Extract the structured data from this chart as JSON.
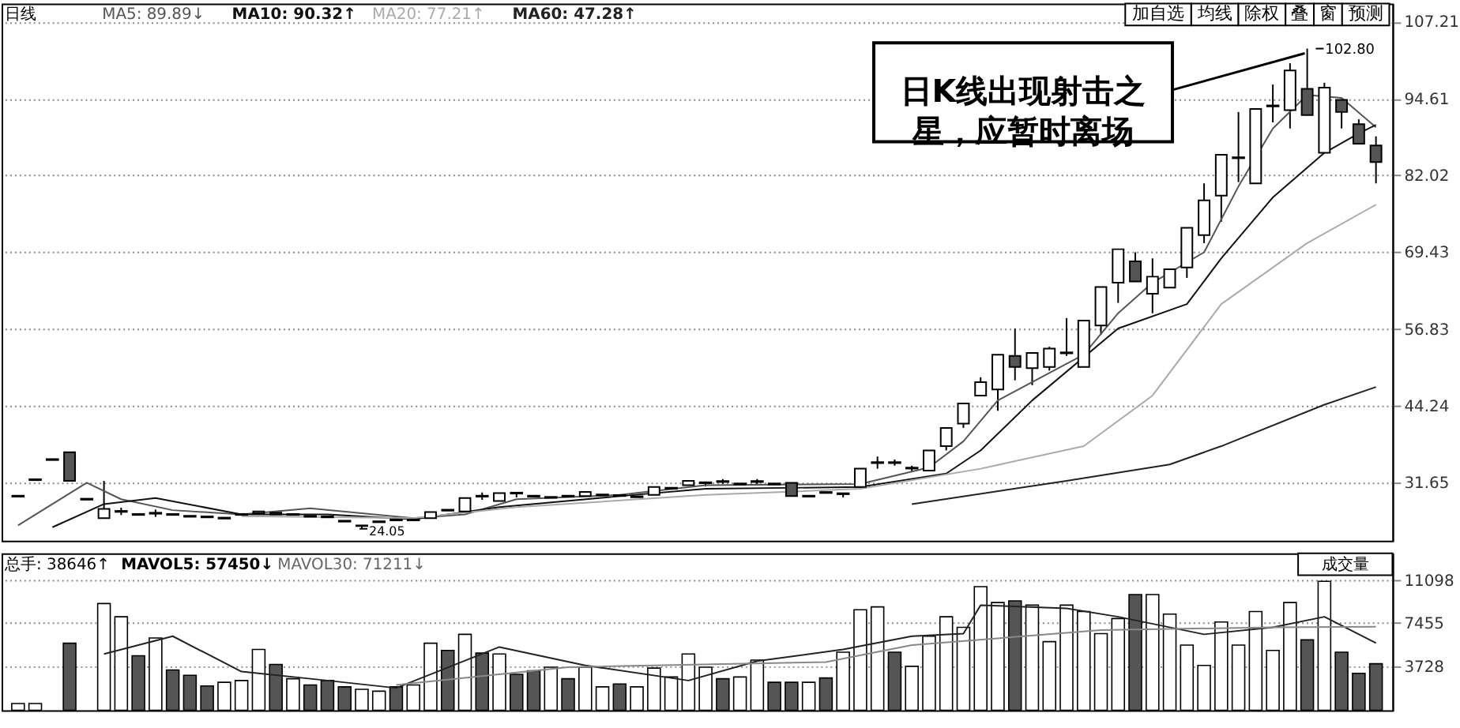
{
  "chart_data": [
    {
      "type": "candlestick",
      "title": "日线",
      "categories": [
        null,
        null,
        null,
        null,
        null,
        null,
        null,
        null,
        null,
        null,
        null,
        null,
        null,
        null,
        null,
        null,
        null,
        null,
        null,
        null,
        null,
        null,
        null,
        null,
        null,
        null,
        null,
        null,
        null,
        null,
        null,
        null,
        null,
        null,
        null,
        null,
        null,
        null,
        null,
        null,
        null,
        null,
        null,
        null,
        null,
        null,
        null,
        null,
        null,
        null,
        null,
        null,
        null,
        null,
        null,
        null,
        null,
        null,
        null,
        null,
        null,
        null,
        null,
        null,
        null,
        null,
        null,
        null,
        null,
        null,
        null,
        null,
        null,
        null,
        null,
        null,
        null,
        null,
        null,
        null
      ],
      "ohlc": [
        [
          29.4,
          29.4,
          29.4,
          29.4
        ],
        [
          32.1,
          32.1,
          32.1,
          32.1
        ],
        [
          35.4,
          35.4,
          35.4,
          35.4
        ],
        [
          36.6,
          36.6,
          31.9,
          31.9
        ],
        [
          28.9,
          28.9,
          28.9,
          28.9
        ],
        [
          25.8,
          31.9,
          25.8,
          27.3
        ],
        [
          26.9,
          27.5,
          26.3,
          26.9
        ],
        [
          26.4,
          26.4,
          26.4,
          26.4
        ],
        [
          26.6,
          27.2,
          26.0,
          26.6
        ],
        [
          26.4,
          26.4,
          26.4,
          26.4
        ],
        [
          26.1,
          26.1,
          26.1,
          26.1
        ],
        [
          26.0,
          26.0,
          26.0,
          26.0
        ],
        [
          25.8,
          25.8,
          25.8,
          25.8
        ],
        [
          26.4,
          26.4,
          26.4,
          26.4
        ],
        [
          26.6,
          26.9,
          26.6,
          26.9
        ],
        [
          26.7,
          26.7,
          26.4,
          26.4
        ],
        [
          26.4,
          26.4,
          26.4,
          26.4
        ],
        [
          26.1,
          26.1,
          26.1,
          26.1
        ],
        [
          26.0,
          26.0,
          26.0,
          26.0
        ],
        [
          25.3,
          25.3,
          25.3,
          25.3
        ],
        [
          24.6,
          24.6,
          24.05,
          24.5
        ],
        [
          25.2,
          25.2,
          25.2,
          25.2
        ],
        [
          25.5,
          25.5,
          25.5,
          25.5
        ],
        [
          25.5,
          25.5,
          25.5,
          25.5
        ],
        [
          25.8,
          26.8,
          25.8,
          26.8
        ],
        [
          27.1,
          27.1,
          27.1,
          27.1
        ],
        [
          26.9,
          29.1,
          26.9,
          29.1
        ],
        [
          29.4,
          30.0,
          28.8,
          29.4
        ],
        [
          28.6,
          29.9,
          28.6,
          29.9
        ],
        [
          29.9,
          29.9,
          29.2,
          29.9
        ],
        [
          29.4,
          29.4,
          29.4,
          29.4
        ],
        [
          29.2,
          29.2,
          29.2,
          29.2
        ],
        [
          29.4,
          29.4,
          29.4,
          29.4
        ],
        [
          29.4,
          30.1,
          29.4,
          30.1
        ],
        [
          29.6,
          29.6,
          29.6,
          29.6
        ],
        [
          29.5,
          29.5,
          29.5,
          29.5
        ],
        [
          29.3,
          29.3,
          29.3,
          29.3
        ],
        [
          29.6,
          30.9,
          29.6,
          30.9
        ],
        [
          30.7,
          30.7,
          30.7,
          30.7
        ],
        [
          31.2,
          31.9,
          31.2,
          31.9
        ],
        [
          31.6,
          31.6,
          31.0,
          31.6
        ],
        [
          31.8,
          32.2,
          31.4,
          31.8
        ],
        [
          31.4,
          31.4,
          31.4,
          31.4
        ],
        [
          31.8,
          32.2,
          31.4,
          31.8
        ],
        [
          31.4,
          31.4,
          31.4,
          31.4
        ],
        [
          31.6,
          31.6,
          29.4,
          29.4
        ],
        [
          29.4,
          29.4,
          29.4,
          29.4
        ],
        [
          30.0,
          30.0,
          30.0,
          30.0
        ],
        [
          29.8,
          29.8,
          29.2,
          29.8
        ],
        [
          30.9,
          33.9,
          30.9,
          33.9
        ],
        [
          34.9,
          35.9,
          33.9,
          34.9
        ],
        [
          34.9,
          35.4,
          34.4,
          34.9
        ],
        [
          34.0,
          34.4,
          33.4,
          34.0
        ],
        [
          33.6,
          36.9,
          33.6,
          36.9
        ],
        [
          37.6,
          40.6,
          36.9,
          40.6
        ],
        [
          41.3,
          44.6,
          40.6,
          44.6
        ],
        [
          45.9,
          48.9,
          45.9,
          48.1
        ],
        [
          46.9,
          52.6,
          43.4,
          52.6
        ],
        [
          52.4,
          56.9,
          48.4,
          50.6
        ],
        [
          50.4,
          52.9,
          47.6,
          52.9
        ],
        [
          50.6,
          53.9,
          50.0,
          53.6
        ],
        [
          52.9,
          58.6,
          52.4,
          52.9
        ],
        [
          50.6,
          58.2,
          50.6,
          58.2
        ],
        [
          57.4,
          63.7,
          55.9,
          63.7
        ],
        [
          64.4,
          69.9,
          61.1,
          69.9
        ],
        [
          67.9,
          69.4,
          64.6,
          64.6
        ],
        [
          62.6,
          68.4,
          59.4,
          65.4
        ],
        [
          63.6,
          66.6,
          63.6,
          66.6
        ],
        [
          66.9,
          73.4,
          65.2,
          73.4
        ],
        [
          72.2,
          80.7,
          70.9,
          77.9
        ],
        [
          78.7,
          85.4,
          74.4,
          85.4
        ],
        [
          84.9,
          92.4,
          80.9,
          84.9
        ],
        [
          80.7,
          92.9,
          80.7,
          92.9
        ],
        [
          93.4,
          96.9,
          90.7,
          93.4
        ],
        [
          92.7,
          100.4,
          89.7,
          99.2
        ],
        [
          96.2,
          102.8,
          91.9,
          91.9
        ],
        [
          85.7,
          97.2,
          85.7,
          96.4
        ],
        [
          94.4,
          94.4,
          89.7,
          92.4
        ],
        [
          90.4,
          91.2,
          87.2,
          87.2
        ],
        [
          86.9,
          88.4,
          80.7,
          84.2
        ]
      ],
      "series": [
        {
          "type": "line",
          "color": "#555555",
          "values": [
            24.6,
            null,
            null,
            null,
            31.6,
            null,
            28.9,
            null,
            null,
            27.1,
            null,
            null,
            null,
            26.4,
            null,
            null,
            null,
            27.4,
            null,
            null,
            null,
            null,
            null,
            25.8,
            null,
            null,
            26.4,
            null,
            null,
            28.9,
            null,
            null,
            null,
            null,
            null,
            29.6,
            null,
            null,
            null,
            null,
            31.2,
            null,
            null,
            null,
            null,
            null,
            null,
            null,
            null,
            31.4,
            null,
            null,
            null,
            34.1,
            null,
            38.4,
            null,
            45.1,
            null,
            null,
            null,
            null,
            52.6,
            null,
            59.4,
            null,
            64.4,
            null,
            null,
            69.4,
            null,
            80.2,
            null,
            89.7,
            null,
            95.2,
            null,
            94.7,
            null,
            89.9
          ]
        },
        {
          "type": "line",
          "color": "#111111",
          "values": [
            null,
            null,
            24.3,
            null,
            null,
            28.1,
            null,
            null,
            29.1,
            null,
            null,
            null,
            null,
            26.4,
            null,
            null,
            null,
            null,
            26.4,
            null,
            null,
            null,
            null,
            25.6,
            null,
            null,
            null,
            null,
            27.6,
            null,
            null,
            null,
            null,
            null,
            null,
            29.4,
            null,
            null,
            null,
            null,
            30.6,
            null,
            null,
            null,
            null,
            null,
            null,
            null,
            null,
            30.9,
            null,
            null,
            null,
            null,
            33.1,
            null,
            36.9,
            null,
            null,
            45.1,
            null,
            null,
            null,
            null,
            56.9,
            null,
            null,
            null,
            60.9,
            null,
            68.4,
            null,
            null,
            78.4,
            null,
            null,
            85.7,
            null,
            88.9,
            90.3
          ]
        },
        {
          "type": "line",
          "color": "#aaaaaa",
          "values": [
            null,
            null,
            null,
            null,
            null,
            null,
            null,
            null,
            null,
            null,
            null,
            null,
            null,
            26.1,
            null,
            null,
            null,
            null,
            null,
            null,
            null,
            null,
            null,
            25.8,
            null,
            null,
            null,
            null,
            null,
            27.6,
            null,
            null,
            null,
            null,
            null,
            null,
            null,
            null,
            null,
            null,
            29.6,
            null,
            null,
            null,
            null,
            null,
            null,
            null,
            null,
            30.6,
            null,
            null,
            null,
            null,
            null,
            null,
            33.9,
            null,
            null,
            null,
            null,
            null,
            37.6,
            null,
            null,
            null,
            45.9,
            null,
            null,
            null,
            60.9,
            null,
            null,
            null,
            null,
            70.9,
            null,
            null,
            null,
            77.2
          ]
        },
        {
          "type": "line",
          "color": "#222222",
          "values": [
            null,
            null,
            null,
            null,
            null,
            null,
            null,
            null,
            null,
            null,
            null,
            null,
            null,
            null,
            null,
            null,
            null,
            null,
            null,
            null,
            null,
            null,
            null,
            null,
            null,
            null,
            null,
            null,
            null,
            null,
            null,
            null,
            null,
            null,
            null,
            null,
            null,
            null,
            null,
            null,
            null,
            null,
            null,
            null,
            null,
            null,
            null,
            null,
            null,
            null,
            null,
            null,
            28.1,
            null,
            null,
            null,
            null,
            null,
            null,
            null,
            null,
            31.9,
            null,
            null,
            null,
            null,
            null,
            34.6,
            null,
            null,
            37.6,
            null,
            null,
            null,
            null,
            null,
            44.4,
            null,
            null,
            47.3
          ]
        }
      ],
      "ylim": [
        22.1,
        110.2
      ],
      "yticks": [
        31.65,
        44.24,
        56.83,
        69.43,
        82.02,
        94.61,
        107.21
      ],
      "grid": "y",
      "tick_labels": "y",
      "annotations": [
        "MA5: 89.89↓",
        "MA10: 90.32↑",
        "MA20: 77.21↑",
        "MA60: 47.28↑",
        "加自选",
        "均线",
        "除权",
        "叠",
        "窗",
        "预测",
        "日K线出现射击之星，应暂时离场",
        "102.80",
        "24.05"
      ]
    },
    {
      "type": "bar",
      "categories": [
        null,
        null,
        null,
        null,
        null,
        null,
        null,
        null,
        null,
        null,
        null,
        null,
        null,
        null,
        null,
        null,
        null,
        null,
        null,
        null,
        null,
        null,
        null,
        null,
        null,
        null,
        null,
        null,
        null,
        null,
        null,
        null,
        null,
        null,
        null,
        null,
        null,
        null,
        null,
        null,
        null,
        null,
        null,
        null,
        null,
        null,
        null,
        null,
        null,
        null,
        null,
        null,
        null,
        null,
        null,
        null,
        null,
        null,
        null,
        null,
        null,
        null,
        null,
        null,
        null,
        null,
        null,
        null,
        null,
        null,
        null,
        null,
        null,
        null,
        null,
        null,
        null,
        null,
        null,
        null
      ],
      "series": [
        {
          "type": "bar",
          "values": [
            580,
            580,
            null,
            5720,
            null,
            9110,
            7980,
            4650,
            6170,
            3440,
            2990,
            2080,
            2390,
            2540,
            5190,
            3910,
            2690,
            2160,
            2540,
            2000,
            1790,
            1630,
            2000,
            2160,
            5720,
            5110,
            6480,
            4880,
            4810,
            3070,
            3370,
            3680,
            2690,
            3680,
            2000,
            2240,
            2000,
            3600,
            2840,
            4810,
            3680,
            2690,
            2840,
            4280,
            2390,
            2390,
            2390,
            2760,
            4960,
            8580,
            8820,
            4960,
            3750,
            6320,
            7980,
            7080,
            10550,
            9190,
            9340,
            8970,
            5860,
            8970,
            8430,
            6540,
            7830,
            9870,
            9870,
            8210,
            5560,
            3830,
            7530,
            5560,
            8430,
            5110,
            9190,
            6010,
            11000,
            4960,
            3150,
            3970
          ],
          "colors": [
            "#ffffff",
            "#ffffff",
            null,
            "#555555",
            null,
            "#ffffff",
            "#ffffff",
            "#555555",
            "#ffffff",
            "#555555",
            "#555555",
            "#555555",
            "#ffffff",
            "#ffffff",
            "#ffffff",
            "#555555",
            "#ffffff",
            "#555555",
            "#555555",
            "#555555",
            "#ffffff",
            "#ffffff",
            "#555555",
            "#ffffff",
            "#ffffff",
            "#555555",
            "#ffffff",
            "#555555",
            "#ffffff",
            "#555555",
            "#555555",
            "#ffffff",
            "#555555",
            "#ffffff",
            "#ffffff",
            "#555555",
            "#ffffff",
            "#ffffff",
            "#ffffff",
            "#ffffff",
            "#ffffff",
            "#555555",
            "#ffffff",
            "#ffffff",
            "#555555",
            "#555555",
            "#ffffff",
            "#555555",
            "#ffffff",
            "#ffffff",
            "#ffffff",
            "#555555",
            "#ffffff",
            "#ffffff",
            "#ffffff",
            "#ffffff",
            "#ffffff",
            "#ffffff",
            "#555555",
            "#ffffff",
            "#ffffff",
            "#ffffff",
            "#ffffff",
            "#ffffff",
            "#ffffff",
            "#555555",
            "#ffffff",
            "#ffffff",
            "#ffffff",
            "#ffffff",
            "#ffffff",
            "#ffffff",
            "#ffffff",
            "#ffffff",
            "#ffffff",
            "#555555",
            "#ffffff",
            "#555555",
            "#555555",
            "#555555"
          ]
        },
        {
          "type": "line",
          "color": "#222222",
          "values": [
            null,
            null,
            null,
            null,
            null,
            4810,
            null,
            null,
            null,
            6320,
            null,
            null,
            null,
            3300,
            null,
            null,
            null,
            null,
            2540,
            null,
            null,
            null,
            1900,
            null,
            null,
            null,
            null,
            null,
            5400,
            null,
            null,
            null,
            null,
            3830,
            null,
            null,
            null,
            null,
            null,
            2540,
            null,
            null,
            null,
            4200,
            null,
            null,
            null,
            null,
            5190,
            null,
            null,
            null,
            6320,
            null,
            null,
            6540,
            8970,
            null,
            null,
            null,
            null,
            8700,
            null,
            null,
            7980,
            null,
            null,
            null,
            null,
            6480,
            null,
            null,
            null,
            7080,
            null,
            null,
            7980,
            null,
            null,
            5745
          ]
        },
        {
          "type": "line",
          "color": "#888888",
          "values": [
            null,
            null,
            null,
            null,
            null,
            null,
            null,
            null,
            null,
            null,
            null,
            null,
            null,
            null,
            null,
            null,
            null,
            null,
            null,
            null,
            null,
            null,
            2160,
            null,
            null,
            null,
            null,
            null,
            null,
            null,
            null,
            null,
            3680,
            null,
            null,
            null,
            null,
            null,
            null,
            null,
            null,
            null,
            null,
            null,
            null,
            null,
            null,
            4120,
            null,
            null,
            null,
            null,
            5560,
            null,
            null,
            null,
            null,
            null,
            null,
            null,
            null,
            null,
            null,
            6840,
            null,
            null,
            null,
            null,
            null,
            null,
            null,
            null,
            null,
            7080,
            null,
            null,
            null,
            null,
            null,
            7121
          ]
        }
      ],
      "ylim": [
        0,
        13400
      ],
      "yticks": [
        3728,
        7455,
        11098
      ],
      "grid": "y",
      "tick_labels": "y",
      "annotations": [
        "总手: 38646↑",
        "MAVOL5: 57450↓",
        "MAVOL30: 71211↓",
        "成交量"
      ]
    }
  ]
}
